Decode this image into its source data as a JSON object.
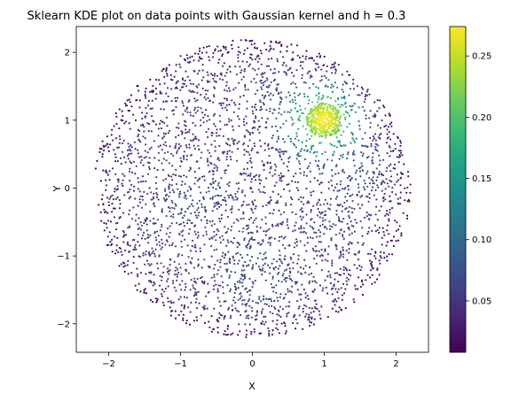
{
  "chart_data": {
    "type": "scatter",
    "title": "Sklearn KDE plot on data points with Gaussian kernel and h = 0.3",
    "xlabel": "X",
    "ylabel": "Y",
    "xlim": [
      -2.45,
      2.45
    ],
    "ylim": [
      -2.42,
      2.38
    ],
    "xticks": [
      -2,
      -1,
      0,
      1,
      2
    ],
    "yticks": [
      -2,
      -1,
      0,
      1,
      2
    ],
    "grid": false,
    "colormap": "viridis",
    "colorbar": {
      "range": [
        0.008,
        0.274
      ],
      "ticks": [
        0.05,
        0.1,
        0.15,
        0.2,
        0.25
      ],
      "tick_labels": [
        "0.05",
        "0.10",
        "0.15",
        "0.20",
        "0.25"
      ]
    },
    "point_size": 1.1,
    "points": {
      "uniform_disc": {
        "center": [
          0,
          0
        ],
        "radius": 2.2,
        "count": 3200
      },
      "dense_cluster": {
        "center": [
          1,
          1
        ],
        "radius": 0.25,
        "count": 350
      }
    },
    "kde": {
      "kernel": "gaussian",
      "bandwidth": 0.3
    }
  }
}
